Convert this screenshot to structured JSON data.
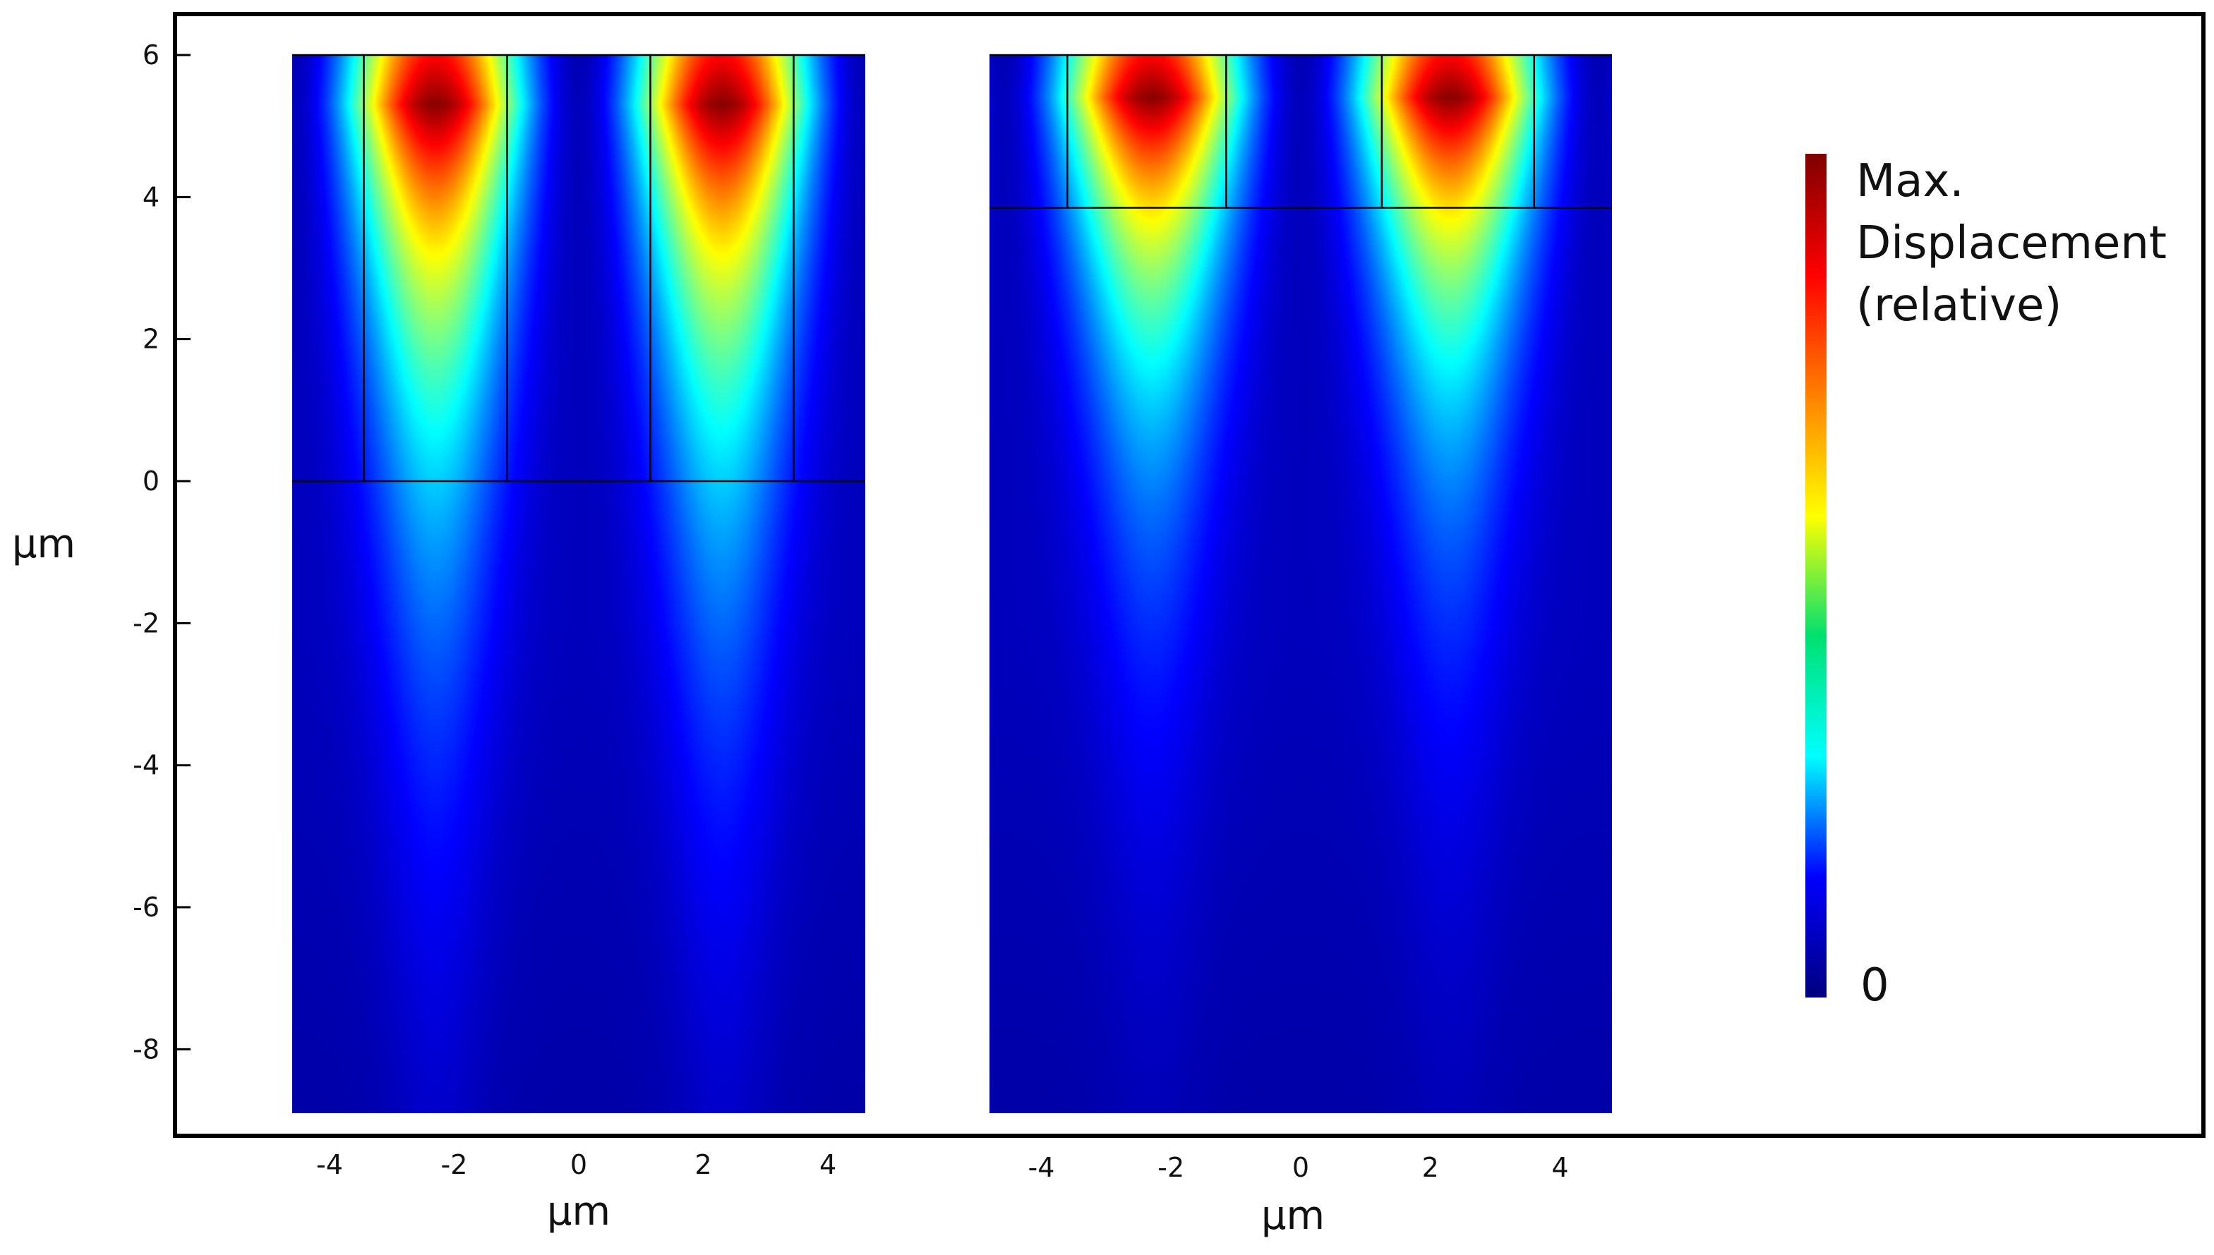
{
  "chart_data": {
    "type": "heatmap",
    "title": "",
    "colormap": "jet",
    "y_axis": {
      "label": "μm",
      "ylim": [
        -8.9,
        6
      ],
      "ticks": [
        6,
        4,
        2,
        0,
        -2,
        -4,
        -6,
        -8
      ],
      "tick_labels": [
        "6",
        "4",
        "2",
        "0",
        "-2",
        "-4",
        "-6",
        "-8"
      ]
    },
    "colorbar": {
      "title_lines": [
        "Max.",
        "Displacement",
        "(relative)"
      ],
      "min_label": "0",
      "colors": [
        "#00007f",
        "#0000ff",
        "#00ffff",
        "#00e070",
        "#ffff00",
        "#ff8000",
        "#ff0000",
        "#7f0000"
      ]
    },
    "panels": [
      {
        "name": "left",
        "xlabel": "μm",
        "xlim": [
          -4.6,
          4.6
        ],
        "ylim": [
          -8.9,
          6
        ],
        "x_ticks": [
          -4,
          -2,
          0,
          2,
          4
        ],
        "x_tick_labels": [
          "-4",
          "-2",
          "0",
          "2",
          "4"
        ],
        "hot_spots_x": [
          -2.3,
          2.3
        ],
        "electrode_top": 6,
        "electrode_bottom": 0,
        "electrode_boundaries_x": [
          -3.45,
          -1.15,
          1.15,
          3.45
        ],
        "field_depth": 3.2,
        "peak_y": 5.3
      },
      {
        "name": "right",
        "xlabel": "μm",
        "xlim": [
          -4.8,
          4.8
        ],
        "ylim": [
          -8.9,
          6
        ],
        "x_ticks": [
          -4,
          -2,
          0,
          2,
          4
        ],
        "x_tick_labels": [
          "-4",
          "-2",
          "0",
          "2",
          "4"
        ],
        "hot_spots_x": [
          -2.3,
          2.3
        ],
        "electrode_top": 6,
        "electrode_bottom": 3.85,
        "electrode_boundaries_x": [
          -3.6,
          -1.15,
          1.25,
          3.6
        ],
        "field_depth": 2.6,
        "peak_y": 5.4
      }
    ]
  }
}
